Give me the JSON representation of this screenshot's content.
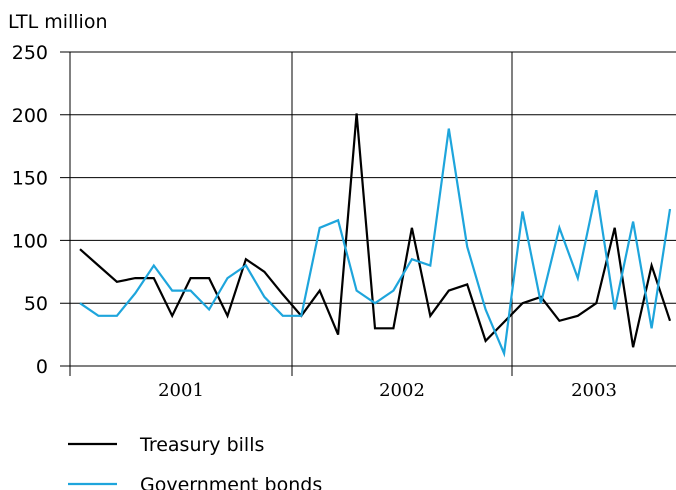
{
  "chart_data": {
    "type": "line",
    "ylabel": "LTL million",
    "ylim": [
      0,
      250
    ],
    "yticks": [
      "0",
      "50",
      "100",
      "150",
      "200",
      "250"
    ],
    "year_groups": [
      "2001",
      "2002",
      "2003"
    ],
    "grid": "vertical year separators",
    "legend_position": "bottom-left",
    "series": [
      {
        "name": "Treasury bills",
        "color": "#000000",
        "values": [
          93,
          80,
          67,
          70,
          70,
          40,
          70,
          70,
          40,
          85,
          75,
          57,
          40,
          60,
          25,
          201,
          30,
          30,
          110,
          40,
          60,
          65,
          20,
          35,
          50,
          55,
          36,
          40,
          50,
          110,
          15,
          80,
          36
        ]
      },
      {
        "name": "Government bonds",
        "color": "#1ea5dc",
        "values": [
          50,
          40,
          40,
          58,
          80,
          60,
          60,
          45,
          70,
          80,
          55,
          40,
          40,
          110,
          116,
          60,
          50,
          60,
          85,
          80,
          189,
          95,
          45,
          10,
          123,
          50,
          110,
          70,
          140,
          45,
          115,
          30,
          125
        ]
      }
    ]
  }
}
